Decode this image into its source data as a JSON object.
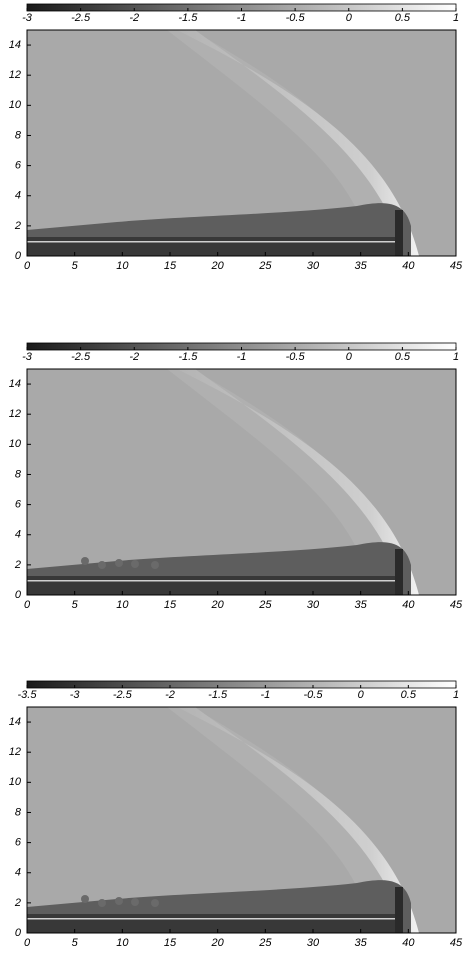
{
  "chart_data": [
    {
      "type": "heatmap",
      "colormap": [
        "#1a1a1a",
        "#ffffff"
      ],
      "clim": [
        -3,
        1
      ],
      "cticks": [
        -3,
        -2.5,
        -2,
        -1.5,
        -1,
        -0.5,
        0,
        0.5,
        1
      ],
      "xlim": [
        0,
        45
      ],
      "xticks": [
        0,
        5,
        10,
        15,
        20,
        25,
        30,
        35,
        40,
        45
      ],
      "ylim": [
        0,
        15
      ],
      "yticks": [
        0,
        2,
        4,
        6,
        8,
        10,
        12,
        14
      ]
    },
    {
      "type": "heatmap",
      "colormap": [
        "#1a1a1a",
        "#ffffff"
      ],
      "clim": [
        -3,
        1
      ],
      "cticks": [
        -3,
        -2.5,
        -2,
        -1.5,
        -1,
        -0.5,
        0,
        0.5,
        1
      ],
      "xlim": [
        0,
        45
      ],
      "xticks": [
        0,
        5,
        10,
        15,
        20,
        25,
        30,
        35,
        40,
        45
      ],
      "ylim": [
        0,
        15
      ],
      "yticks": [
        0,
        2,
        4,
        6,
        8,
        10,
        12,
        14
      ]
    },
    {
      "type": "heatmap",
      "colormap": [
        "#1a1a1a",
        "#ffffff"
      ],
      "clim": [
        -3.5,
        1
      ],
      "cticks": [
        -3.5,
        -3,
        -2.5,
        -2,
        -1.5,
        -1,
        -0.5,
        0,
        0.5,
        1
      ],
      "xlim": [
        0,
        45
      ],
      "xticks": [
        0,
        5,
        10,
        15,
        20,
        25,
        30,
        35,
        40,
        45
      ],
      "ylim": [
        0,
        15
      ],
      "yticks": [
        0,
        2,
        4,
        6,
        8,
        10,
        12,
        14
      ]
    }
  ]
}
